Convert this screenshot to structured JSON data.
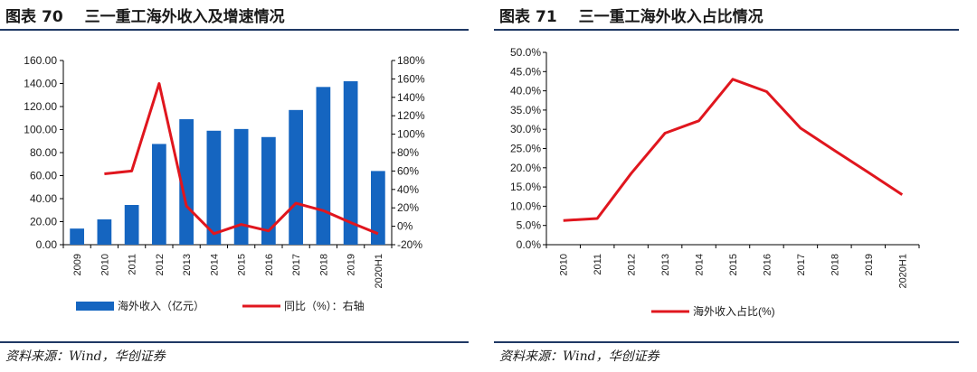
{
  "left": {
    "fig_label": "图表",
    "fig_number": "70",
    "fig_title": "三一重工海外收入及增速情况",
    "source": "资料来源：Wind，华创证券"
  },
  "right": {
    "fig_label": "图表",
    "fig_number": "71",
    "fig_title": "三一重工海外收入占比情况",
    "source": "资料来源：Wind，华创证券"
  },
  "colors": {
    "bar": "#1565c0",
    "line": "#e0161e",
    "rule": "#1f3864",
    "axis": "#000000"
  },
  "chart_data": [
    {
      "type": "bar",
      "title": "三一重工海外收入及增速情况",
      "categories": [
        "2009",
        "2010",
        "2011",
        "2012",
        "2013",
        "2014",
        "2015",
        "2016",
        "2017",
        "2018",
        "2019",
        "2020H1"
      ],
      "series": [
        {
          "name": "海外收入（亿元）",
          "type": "bar",
          "axis": "left",
          "values": [
            14,
            22,
            34.5,
            87.5,
            109,
            99,
            100.5,
            93.5,
            117,
            137,
            142,
            64
          ]
        },
        {
          "name": "同比（%）：右轴",
          "type": "line",
          "axis": "right",
          "values": [
            null,
            57,
            60,
            155,
            22,
            -8,
            2,
            -5,
            25,
            17,
            4,
            -8
          ]
        }
      ],
      "ylim_left": [
        0,
        160
      ],
      "yticks_left": [
        "0.00",
        "20.00",
        "40.00",
        "60.00",
        "80.00",
        "100.00",
        "120.00",
        "140.00",
        "160.00"
      ],
      "ylim_right": [
        -20,
        180
      ],
      "yticks_right": [
        "-20%",
        "0%",
        "20%",
        "40%",
        "60%",
        "80%",
        "100%",
        "120%",
        "140%",
        "160%",
        "180%"
      ],
      "legend": [
        "海外收入（亿元）",
        "同比（%）：右轴"
      ],
      "legend_position": "bottom"
    },
    {
      "type": "line",
      "title": "三一重工海外收入占比情况",
      "categories": [
        "2010",
        "2011",
        "2012",
        "2013",
        "2014",
        "2015",
        "2016",
        "2017",
        "2018",
        "2019",
        "2020H1"
      ],
      "series": [
        {
          "name": "海外收入占比(%)",
          "values": [
            6.3,
            6.8,
            18.5,
            29,
            32.2,
            43,
            39.8,
            30.3,
            24.5,
            18.8,
            13
          ]
        }
      ],
      "ylim": [
        0,
        50
      ],
      "yticks": [
        "0.0%",
        "5.0%",
        "10.0%",
        "15.0%",
        "20.0%",
        "25.0%",
        "30.0%",
        "35.0%",
        "40.0%",
        "45.0%",
        "50.0%"
      ],
      "legend": [
        "海外收入占比(%)"
      ],
      "legend_position": "bottom"
    }
  ]
}
